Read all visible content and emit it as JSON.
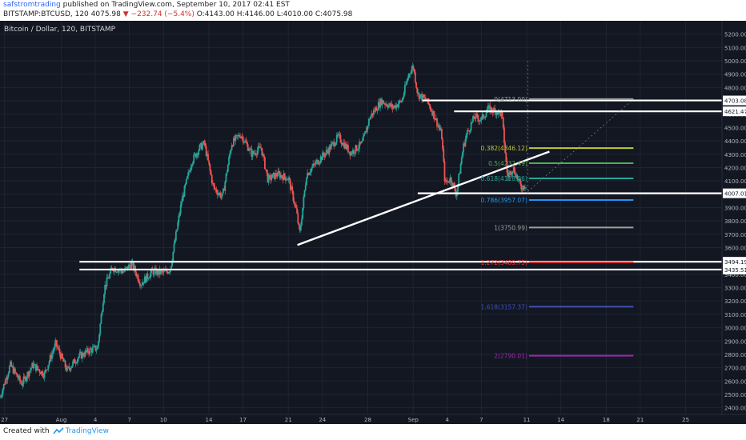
{
  "header": {
    "author": "safstromtrading",
    "published": " published on TradingView.com, September 10, 2017 02:41 EST",
    "symbol": "BITSTAMP:BTCUSD, 120",
    "last": "4075.98",
    "change": "▼ −232.74 (−5.4%)",
    "open": "O:4143.00",
    "high": "H:4146.00",
    "low": "L:4010.00",
    "close": "C:4075.98"
  },
  "footer": {
    "created": "Created with",
    "brand": "TradingView"
  },
  "colors": {
    "background": "#131722",
    "grid": "#1f2433",
    "candle_up": "#26a69a",
    "candle_down": "#ef5350",
    "axis_text": "#b2b5be",
    "line_white": "#ffffff"
  },
  "chart_data": {
    "type": "candlestick",
    "title": "Bitcoin / Dollar, 120, BITSTAMP",
    "ylim": [
      2350,
      5300
    ],
    "y_ticks": [
      2400,
      2500,
      2600,
      2700,
      2800,
      2900,
      3000,
      3100,
      3200,
      3300,
      3400,
      3500,
      3600,
      3700,
      3800,
      3900,
      4000,
      4100,
      4200,
      4300,
      4400,
      4500,
      4600,
      4700,
      4800,
      4900,
      5000,
      5100,
      5200
    ],
    "x_ticks": [
      {
        "label": "27",
        "day": 27
      },
      {
        "label": "Aug",
        "day": 32
      },
      {
        "label": "4",
        "day": 35
      },
      {
        "label": "7",
        "day": 38
      },
      {
        "label": "10",
        "day": 41
      },
      {
        "label": "14",
        "day": 45
      },
      {
        "label": "17",
        "day": 48
      },
      {
        "label": "21",
        "day": 52
      },
      {
        "label": "24",
        "day": 55
      },
      {
        "label": "28",
        "day": 59
      },
      {
        "label": "Sep",
        "day": 63
      },
      {
        "label": "4",
        "day": 66
      },
      {
        "label": "7",
        "day": 69
      },
      {
        "label": "11",
        "day": 73
      },
      {
        "label": "14",
        "day": 76
      },
      {
        "label": "18",
        "day": 80
      },
      {
        "label": "21",
        "day": 83
      },
      {
        "label": "25",
        "day": 87
      }
    ],
    "x_range_days": [
      26.6,
      90.2
    ],
    "price_path": [
      [
        26.6,
        2480
      ],
      [
        27.5,
        2720
      ],
      [
        28.5,
        2580
      ],
      [
        29.5,
        2720
      ],
      [
        30.5,
        2650
      ],
      [
        31.5,
        2880
      ],
      [
        32.5,
        2680
      ],
      [
        33.5,
        2780
      ],
      [
        34.5,
        2830
      ],
      [
        35.2,
        2850
      ],
      [
        35.8,
        3300
      ],
      [
        36.5,
        3450
      ],
      [
        37.5,
        3420
      ],
      [
        38.2,
        3480
      ],
      [
        39,
        3330
      ],
      [
        40,
        3420
      ],
      [
        41,
        3410
      ],
      [
        41.6,
        3440
      ],
      [
        42.6,
        3950
      ],
      [
        43.5,
        4250
      ],
      [
        44.2,
        4350
      ],
      [
        44.6,
        4380
      ],
      [
        45.4,
        4050
      ],
      [
        46.2,
        3980
      ],
      [
        47,
        4380
      ],
      [
        47.8,
        4450
      ],
      [
        48.8,
        4300
      ],
      [
        49.6,
        4350
      ],
      [
        50.2,
        4110
      ],
      [
        51,
        4150
      ],
      [
        52,
        4120
      ],
      [
        52.7,
        3880
      ],
      [
        53,
        3700
      ],
      [
        53.6,
        4150
      ],
      [
        54.6,
        4250
      ],
      [
        55.5,
        4330
      ],
      [
        56.4,
        4430
      ],
      [
        57.5,
        4310
      ],
      [
        58.5,
        4380
      ],
      [
        59.2,
        4580
      ],
      [
        60.2,
        4700
      ],
      [
        61.2,
        4650
      ],
      [
        62,
        4700
      ],
      [
        62.6,
        4900
      ],
      [
        63,
        4960
      ],
      [
        63.4,
        4750
      ],
      [
        64.2,
        4700
      ],
      [
        64.8,
        4600
      ],
      [
        65.5,
        4450
      ],
      [
        65.8,
        4080
      ],
      [
        66.3,
        4120
      ],
      [
        66.8,
        4000
      ],
      [
        67.4,
        4350
      ],
      [
        67.7,
        4450
      ],
      [
        68.4,
        4580
      ],
      [
        69,
        4560
      ],
      [
        69.6,
        4640
      ],
      [
        70.4,
        4620
      ],
      [
        70.8,
        4600
      ],
      [
        71.3,
        4130
      ],
      [
        71.8,
        4200
      ],
      [
        72.5,
        4050
      ],
      [
        73,
        4075.98
      ]
    ],
    "annotations": {
      "horizontal_levels": [
        {
          "price": 4703.08,
          "label": "4703.08",
          "from_day": 63.8,
          "to_day": 90.2
        },
        {
          "price": 4621.47,
          "label": "4621.47",
          "from_day": 66.6,
          "to_day": 90.2
        },
        {
          "price": 4007.01,
          "label": "4007.01",
          "from_day": 63.4,
          "to_day": 90.2
        },
        {
          "price": 3494.19,
          "label": "3494.19",
          "from_day": 33.6,
          "to_day": 90.2
        },
        {
          "price": 3435.51,
          "label": "3435.51",
          "from_day": 33.6,
          "to_day": 90.2
        }
      ],
      "trendline": {
        "from": [
          52.8,
          3620
        ],
        "to": [
          75.0,
          4320
        ]
      },
      "fibonacci": [
        {
          "label": "0(4713.00)",
          "price": 4713.0,
          "color": "#9e9e9e"
        },
        {
          "label": "0.382(4346.12)",
          "price": 4346.12,
          "color": "#c0ca33"
        },
        {
          "label": "0.5(4232.49)",
          "price": 4232.49,
          "color": "#4caf50"
        },
        {
          "label": "0.618(4118.86)",
          "price": 4118.86,
          "color": "#26a69a"
        },
        {
          "label": "0.786(3957.07)",
          "price": 3957.07,
          "color": "#2196f3"
        },
        {
          "label": "1(3750.99)",
          "price": 3750.99,
          "color": "#9e9e9e"
        },
        {
          "label": "1.272(3489.75)",
          "price": 3489.75,
          "color": "#e53935"
        },
        {
          "label": "1.618(3157.37)",
          "price": 3157.37,
          "color": "#3f51b5"
        },
        {
          "label": "2(2790.01)",
          "price": 2790.01,
          "color": "#9c27b0"
        }
      ]
    }
  }
}
